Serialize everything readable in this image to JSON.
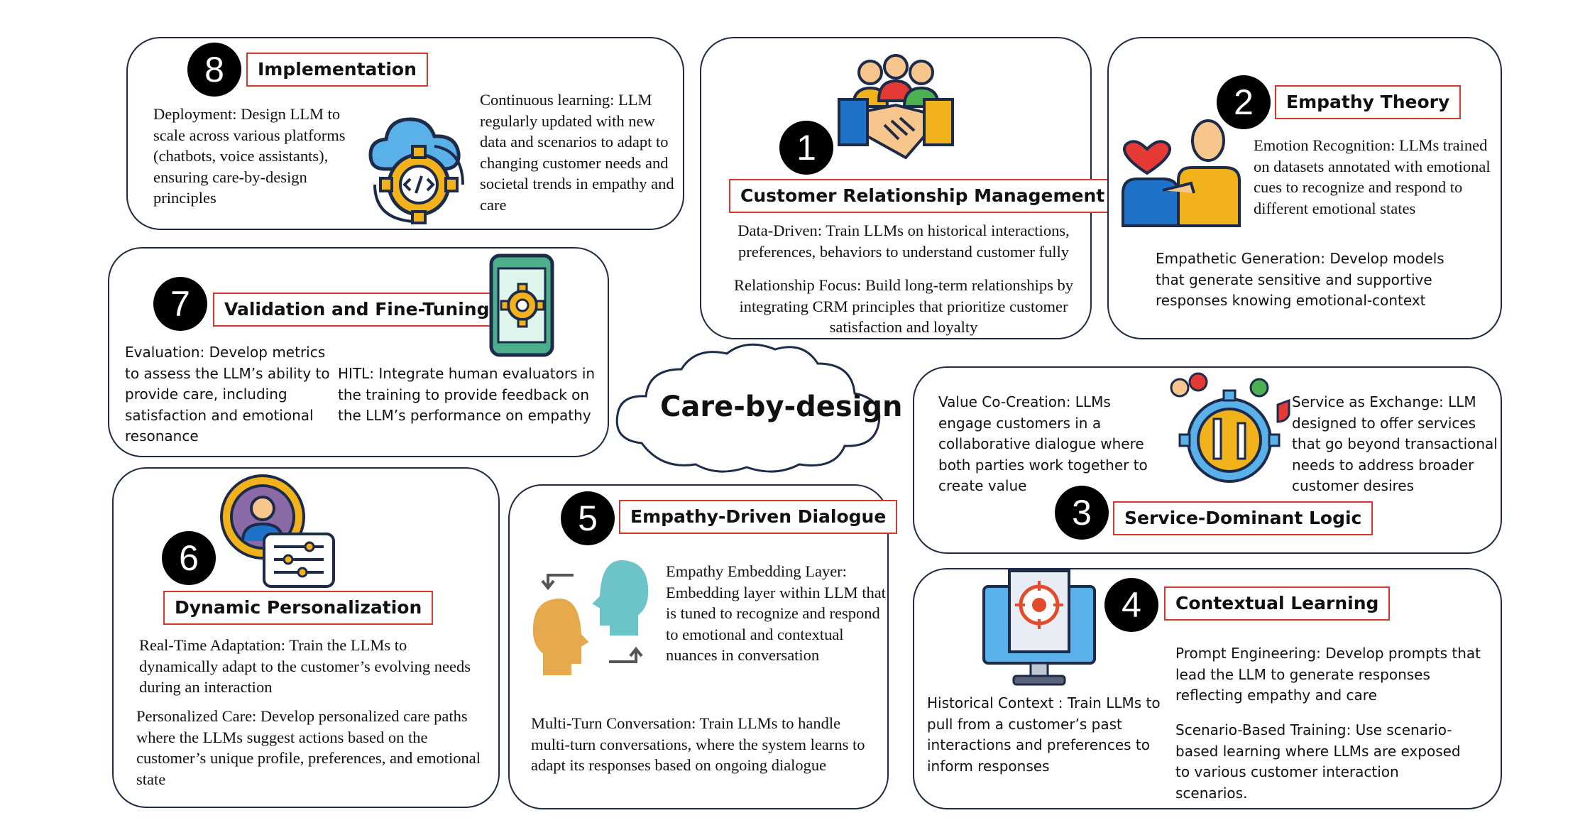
{
  "center": {
    "label": "Care-by-design"
  },
  "sections": {
    "s1": {
      "number": "1",
      "title": "Customer Relationship Management",
      "text1": "Data-Driven: Train LLMs on historical interactions, preferences, behaviors to understand customer fully",
      "text2": "Relationship Focus: Build long-term relationships by integrating CRM principles that prioritize customer satisfaction and loyalty",
      "icon": "handshake-team-icon"
    },
    "s2": {
      "number": "2",
      "title": "Empathy Theory",
      "text1": "Emotion Recognition: LLMs trained on datasets annotated with emotional cues to recognize and respond to different emotional states",
      "text2": "Empathetic Generation: Develop models that generate sensitive and supportive responses knowing emotional-context",
      "icon": "empathy-people-icon"
    },
    "s3": {
      "number": "3",
      "title": "Service-Dominant Logic",
      "text1": "Value Co-Creation: LLMs engage customers in a collaborative dialogue where both parties work together to create value",
      "text2": "Service as Exchange: LLM designed to offer services that go beyond transactional needs to address broader customer desires",
      "icon": "service-tools-gear-icon"
    },
    "s4": {
      "number": "4",
      "title": "Contextual Learning",
      "text1": "Historical Context : Train LLMs to pull from a customer’s past interactions and preferences to inform responses",
      "text2": "Prompt Engineering: Develop prompts that lead the LLM to generate responses reflecting empathy and care",
      "text3": "Scenario-Based Training: Use scenario-based learning where LLMs are exposed to various customer interaction scenarios.",
      "icon": "monitor-target-icon"
    },
    "s5": {
      "number": "5",
      "title": "Empathy-Driven Dialogue",
      "text1": "Empathy Embedding Layer: Embedding layer within LLM that is tuned to recognize and respond to emotional and contextual nuances in conversation",
      "text2": "Multi-Turn Conversation: Train LLMs to handle multi-turn conversations, where the system learns to adapt its responses based on ongoing dialogue",
      "icon": "dialogue-heads-icon"
    },
    "s6": {
      "number": "6",
      "title": "Dynamic Personalization",
      "text1": "Real-Time Adaptation: Train the LLMs to dynamically adapt to the customer’s evolving needs during an interaction",
      "text2": "Personalized Care: Develop personalized care paths where the LLMs suggest actions based on the customer’s unique profile, preferences, and emotional state",
      "icon": "profile-settings-icon"
    },
    "s7": {
      "number": "7",
      "title": "Validation and Fine-Tuning",
      "text1": "Evaluation: Develop metrics to assess the LLM’s ability to provide care, including satisfaction and emotional resonance",
      "text2": "HITL: Integrate human evaluators in the training to provide feedback on the LLM’s performance on empathy",
      "icon": "phone-gear-icon"
    },
    "s8": {
      "number": "8",
      "title": "Implementation",
      "text1": "Deployment: Design LLM to scale across various platforms (chatbots, voice assistants), ensuring care-by-design principles",
      "text2": "Continuous learning: LLM regularly updated with new data and scenarios to adapt to changing customer needs and societal trends in empathy and care",
      "icon": "cloud-code-gear-icon"
    }
  },
  "colors": {
    "panel_border": "#1f2a44",
    "title_border": "#d9362b",
    "badge": "#000000"
  }
}
